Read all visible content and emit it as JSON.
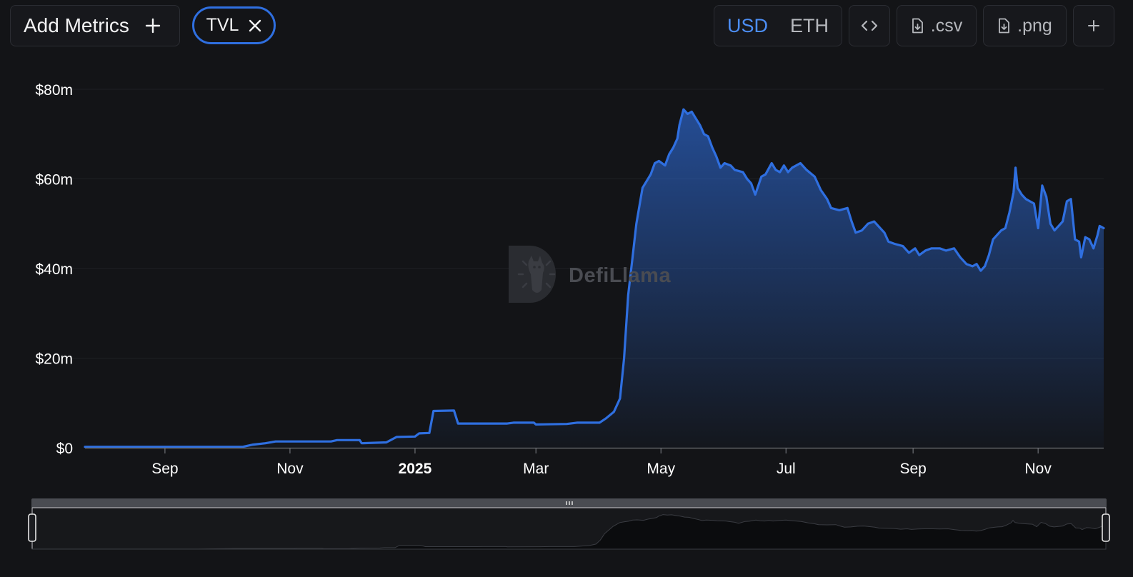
{
  "toolbar": {
    "add_metrics_label": "Add Metrics",
    "add_icon": "plus-icon",
    "metric_chip_label": "TVL",
    "remove_icon": "close-icon",
    "currencies": [
      "USD",
      "ETH"
    ],
    "selected_currency": "USD",
    "embed_icon": "code-icon",
    "csv_label": ".csv",
    "png_label": ".png",
    "download_icon": "file-download-icon",
    "more_icon": "plus-icon"
  },
  "watermark": {
    "text": "DefiLlama",
    "logo": "llama-logo"
  },
  "colors": {
    "background": "#131417",
    "line": "#2f6fe0",
    "accent": "#4c8ef5",
    "axis_text": "#ffffff",
    "brush_fill": "#0b0c0e"
  },
  "chart_data": {
    "type": "area",
    "xlabel": "",
    "ylabel": "",
    "x_range": [
      "2024-07-24",
      "2025-12-03"
    ],
    "ylim": [
      0,
      80000000
    ],
    "y_ticks": [
      0,
      20000000,
      40000000,
      60000000,
      80000000
    ],
    "y_tick_labels": [
      "$0",
      "$20m",
      "$40m",
      "$60m",
      "$80m"
    ],
    "x_ticks": [
      {
        "date": "2024-09-01",
        "label": "Sep"
      },
      {
        "date": "2024-11-01",
        "label": "Nov"
      },
      {
        "date": "2025-01-01",
        "label": "2025",
        "bold": true
      },
      {
        "date": "2025-03-01",
        "label": "Mar"
      },
      {
        "date": "2025-05-01",
        "label": "May"
      },
      {
        "date": "2025-07-01",
        "label": "Jul"
      },
      {
        "date": "2025-09-01",
        "label": "Sep"
      },
      {
        "date": "2025-11-01",
        "label": "Nov"
      }
    ],
    "grid": "horizontal",
    "series": [
      {
        "values": [
          [
            "2024-07-24",
            200000
          ],
          [
            "2024-10-09",
            200000
          ],
          [
            "2024-10-14",
            700000
          ],
          [
            "2024-10-20",
            1000000
          ],
          [
            "2024-10-25",
            1400000
          ],
          [
            "2024-11-21",
            1400000
          ],
          [
            "2024-11-24",
            1700000
          ],
          [
            "2024-12-05",
            1700000
          ],
          [
            "2024-12-06",
            1000000
          ],
          [
            "2024-12-18",
            1200000
          ],
          [
            "2024-12-23",
            2400000
          ],
          [
            "2025-01-01",
            2500000
          ],
          [
            "2025-01-03",
            3200000
          ],
          [
            "2025-01-08",
            3300000
          ],
          [
            "2025-01-10",
            8200000
          ],
          [
            "2025-01-20",
            8300000
          ],
          [
            "2025-01-22",
            5400000
          ],
          [
            "2025-02-15",
            5400000
          ],
          [
            "2025-02-18",
            5600000
          ],
          [
            "2025-02-28",
            5600000
          ],
          [
            "2025-03-01",
            5200000
          ],
          [
            "2025-03-16",
            5300000
          ],
          [
            "2025-03-21",
            5600000
          ],
          [
            "2025-04-01",
            5600000
          ],
          [
            "2025-04-04",
            6500000
          ],
          [
            "2025-04-08",
            8000000
          ],
          [
            "2025-04-11",
            11000000
          ],
          [
            "2025-04-13",
            20000000
          ],
          [
            "2025-04-15",
            34000000
          ],
          [
            "2025-04-17",
            42000000
          ],
          [
            "2025-04-19",
            50000000
          ],
          [
            "2025-04-22",
            58000000
          ],
          [
            "2025-04-24",
            59500000
          ],
          [
            "2025-04-26",
            61000000
          ],
          [
            "2025-04-28",
            63500000
          ],
          [
            "2025-04-30",
            64000000
          ],
          [
            "2025-05-03",
            63000000
          ],
          [
            "2025-05-05",
            65500000
          ],
          [
            "2025-05-07",
            67000000
          ],
          [
            "2025-05-09",
            69000000
          ],
          [
            "2025-05-10",
            72000000
          ],
          [
            "2025-05-12",
            75500000
          ],
          [
            "2025-05-14",
            74500000
          ],
          [
            "2025-05-16",
            75000000
          ],
          [
            "2025-05-18",
            73500000
          ],
          [
            "2025-05-20",
            72000000
          ],
          [
            "2025-05-22",
            70000000
          ],
          [
            "2025-05-24",
            69500000
          ],
          [
            "2025-05-26",
            67000000
          ],
          [
            "2025-05-28",
            65000000
          ],
          [
            "2025-05-30",
            62500000
          ],
          [
            "2025-06-01",
            63500000
          ],
          [
            "2025-06-04",
            63000000
          ],
          [
            "2025-06-06",
            62000000
          ],
          [
            "2025-06-10",
            61500000
          ],
          [
            "2025-06-12",
            60000000
          ],
          [
            "2025-06-14",
            59000000
          ],
          [
            "2025-06-16",
            56500000
          ],
          [
            "2025-06-19",
            60500000
          ],
          [
            "2025-06-21",
            61000000
          ],
          [
            "2025-06-24",
            63500000
          ],
          [
            "2025-06-26",
            62000000
          ],
          [
            "2025-06-28",
            61500000
          ],
          [
            "2025-06-30",
            63000000
          ],
          [
            "2025-07-02",
            61500000
          ],
          [
            "2025-07-04",
            62500000
          ],
          [
            "2025-07-08",
            63500000
          ],
          [
            "2025-07-11",
            62000000
          ],
          [
            "2025-07-15",
            60500000
          ],
          [
            "2025-07-18",
            57500000
          ],
          [
            "2025-07-21",
            55500000
          ],
          [
            "2025-07-23",
            53500000
          ],
          [
            "2025-07-27",
            53000000
          ],
          [
            "2025-07-31",
            53500000
          ],
          [
            "2025-08-02",
            50500000
          ],
          [
            "2025-08-04",
            48000000
          ],
          [
            "2025-08-07",
            48500000
          ],
          [
            "2025-08-10",
            50000000
          ],
          [
            "2025-08-13",
            50500000
          ],
          [
            "2025-08-15",
            49500000
          ],
          [
            "2025-08-18",
            48000000
          ],
          [
            "2025-08-20",
            46000000
          ],
          [
            "2025-08-23",
            45500000
          ],
          [
            "2025-08-27",
            45000000
          ],
          [
            "2025-08-30",
            43500000
          ],
          [
            "2025-09-02",
            44500000
          ],
          [
            "2025-09-04",
            43000000
          ],
          [
            "2025-09-07",
            44000000
          ],
          [
            "2025-09-10",
            44500000
          ],
          [
            "2025-09-14",
            44500000
          ],
          [
            "2025-09-17",
            44000000
          ],
          [
            "2025-09-21",
            44500000
          ],
          [
            "2025-09-24",
            42500000
          ],
          [
            "2025-09-27",
            41000000
          ],
          [
            "2025-09-30",
            40500000
          ],
          [
            "2025-10-02",
            41000000
          ],
          [
            "2025-10-04",
            39500000
          ],
          [
            "2025-10-06",
            40500000
          ],
          [
            "2025-10-08",
            43000000
          ],
          [
            "2025-10-10",
            46500000
          ],
          [
            "2025-10-12",
            47500000
          ],
          [
            "2025-10-14",
            48500000
          ],
          [
            "2025-10-16",
            49000000
          ],
          [
            "2025-10-18",
            52500000
          ],
          [
            "2025-10-20",
            57000000
          ],
          [
            "2025-10-21",
            62500000
          ],
          [
            "2025-10-22",
            58000000
          ],
          [
            "2025-10-24",
            56500000
          ],
          [
            "2025-10-26",
            55500000
          ],
          [
            "2025-10-28",
            55000000
          ],
          [
            "2025-10-30",
            54500000
          ],
          [
            "2025-11-01",
            49000000
          ],
          [
            "2025-11-03",
            58500000
          ],
          [
            "2025-11-05",
            56000000
          ],
          [
            "2025-11-07",
            50000000
          ],
          [
            "2025-11-09",
            48500000
          ],
          [
            "2025-11-11",
            49500000
          ],
          [
            "2025-11-13",
            50500000
          ],
          [
            "2025-11-15",
            55000000
          ],
          [
            "2025-11-17",
            55500000
          ],
          [
            "2025-11-19",
            46500000
          ],
          [
            "2025-11-21",
            46000000
          ],
          [
            "2025-11-22",
            42500000
          ],
          [
            "2025-11-24",
            47000000
          ],
          [
            "2025-11-26",
            46500000
          ],
          [
            "2025-11-28",
            44500000
          ],
          [
            "2025-11-30",
            47500000
          ],
          [
            "2025-12-01",
            49500000
          ],
          [
            "2025-12-03",
            49000000
          ]
        ]
      }
    ],
    "range_selector": {
      "start": "2024-07-24",
      "end": "2025-12-03"
    }
  }
}
